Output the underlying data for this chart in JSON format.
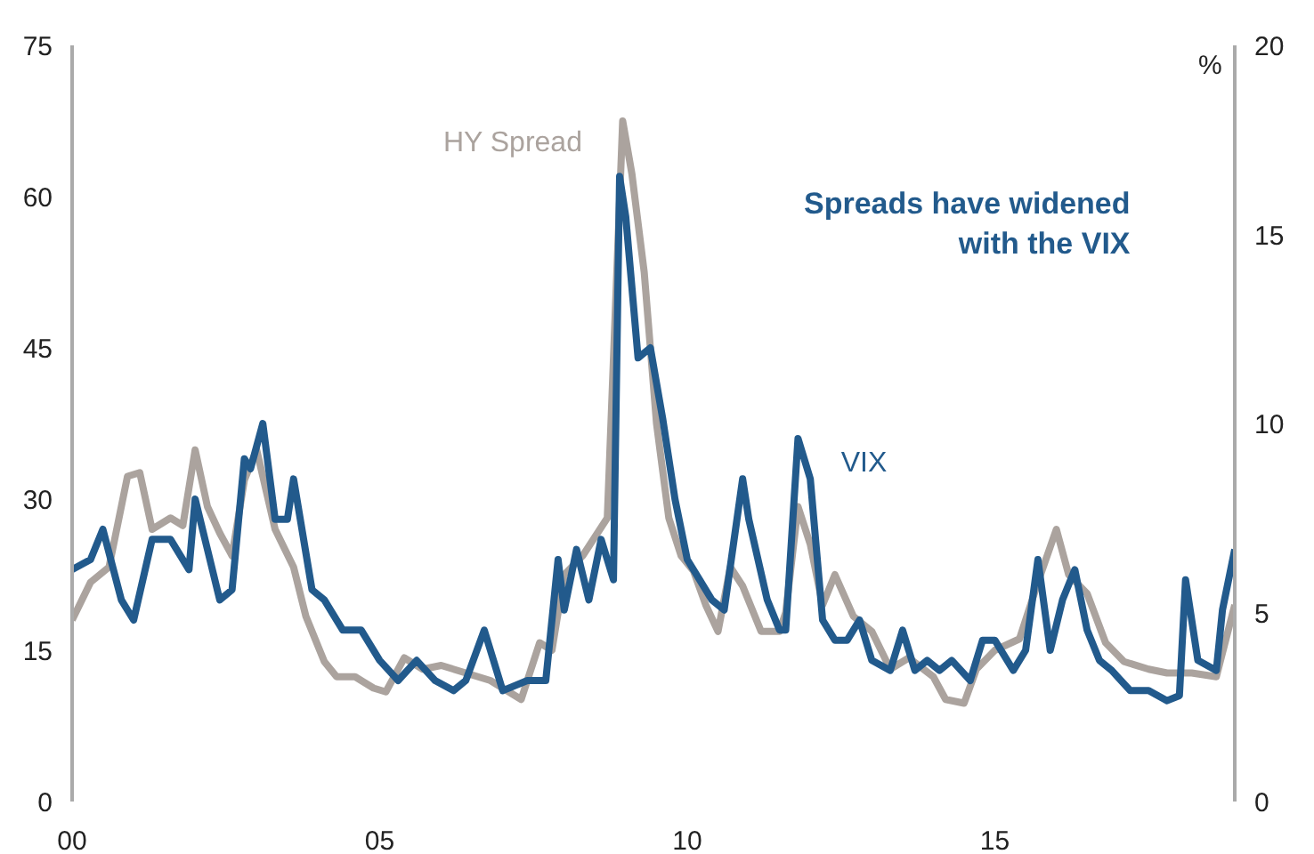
{
  "chart_data": {
    "type": "line",
    "annotations": [
      "Spreads have widened\nwith the VIX"
    ],
    "y2label": "%",
    "xlim": [
      2000,
      2018.9
    ],
    "xticks": [
      {
        "value": 2000,
        "label": "00"
      },
      {
        "value": 2005,
        "label": "05"
      },
      {
        "value": 2010,
        "label": "10"
      },
      {
        "value": 2015,
        "label": "15"
      }
    ],
    "ylim": [
      0,
      75
    ],
    "yticks": [
      0,
      15,
      30,
      45,
      60,
      75
    ],
    "y2lim": [
      0,
      20
    ],
    "y2ticks": [
      0,
      5,
      10,
      15,
      20
    ],
    "grid": false,
    "marker": "none",
    "line_style": "solid",
    "series": [
      {
        "name": "HY Spread",
        "color": "#aba39e",
        "axis": "y2",
        "x": [
          2000.0,
          2000.3,
          2000.6,
          2000.9,
          2001.1,
          2001.3,
          2001.6,
          2001.8,
          2002.0,
          2002.2,
          2002.4,
          2002.6,
          2002.8,
          2003.0,
          2003.3,
          2003.6,
          2003.8,
          2004.1,
          2004.3,
          2004.6,
          2004.9,
          2005.1,
          2005.4,
          2005.7,
          2006.0,
          2006.4,
          2006.8,
          2007.1,
          2007.3,
          2007.6,
          2007.8,
          2008.0,
          2008.3,
          2008.5,
          2008.7,
          2008.95,
          2009.1,
          2009.3,
          2009.5,
          2009.7,
          2009.9,
          2010.1,
          2010.3,
          2010.5,
          2010.7,
          2010.9,
          2011.2,
          2011.5,
          2011.6,
          2011.8,
          2012.0,
          2012.2,
          2012.4,
          2012.7,
          2013.0,
          2013.3,
          2013.6,
          2014.0,
          2014.2,
          2014.5,
          2014.7,
          2015.0,
          2015.4,
          2015.7,
          2016.0,
          2016.2,
          2016.5,
          2016.8,
          2017.1,
          2017.5,
          2017.8,
          2018.2,
          2018.6,
          2018.9
        ],
        "values": [
          4.8,
          5.8,
          6.2,
          8.6,
          8.7,
          7.2,
          7.5,
          7.3,
          9.3,
          7.8,
          7.1,
          6.5,
          8.5,
          9.3,
          7.2,
          6.2,
          4.9,
          3.7,
          3.3,
          3.3,
          3.0,
          2.9,
          3.8,
          3.5,
          3.6,
          3.4,
          3.2,
          2.9,
          2.7,
          4.2,
          4.0,
          6.0,
          6.5,
          7.0,
          7.5,
          18.0,
          16.6,
          14.0,
          10.0,
          7.5,
          6.5,
          6.1,
          5.2,
          4.5,
          6.2,
          5.7,
          4.5,
          4.5,
          5.0,
          7.8,
          6.8,
          5.2,
          6.0,
          4.9,
          4.5,
          3.5,
          3.8,
          3.3,
          2.7,
          2.6,
          3.5,
          4.0,
          4.3,
          5.8,
          7.2,
          6.0,
          5.5,
          4.2,
          3.7,
          3.5,
          3.4,
          3.4,
          3.3,
          5.2
        ]
      },
      {
        "name": "VIX",
        "color": "#225a8c",
        "x": [
          2000.0,
          2000.3,
          2000.5,
          2000.8,
          2001.0,
          2001.3,
          2001.6,
          2001.9,
          2002.0,
          2002.2,
          2002.4,
          2002.6,
          2002.8,
          2002.9,
          2003.1,
          2003.3,
          2003.5,
          2003.6,
          2003.9,
          2004.1,
          2004.4,
          2004.7,
          2005.0,
          2005.3,
          2005.6,
          2005.9,
          2006.2,
          2006.4,
          2006.7,
          2007.0,
          2007.4,
          2007.7,
          2007.9,
          2008.0,
          2008.2,
          2008.4,
          2008.6,
          2008.8,
          2008.9,
          2009.0,
          2009.2,
          2009.4,
          2009.6,
          2009.8,
          2010.0,
          2010.2,
          2010.4,
          2010.6,
          2010.9,
          2011.0,
          2011.3,
          2011.5,
          2011.6,
          2011.8,
          2012.0,
          2012.2,
          2012.4,
          2012.6,
          2012.8,
          2013.0,
          2013.3,
          2013.5,
          2013.7,
          2013.9,
          2014.1,
          2014.3,
          2014.6,
          2014.8,
          2015.0,
          2015.3,
          2015.5,
          2015.7,
          2015.9,
          2016.1,
          2016.3,
          2016.5,
          2016.7,
          2016.9,
          2017.2,
          2017.5,
          2017.8,
          2018.0,
          2018.1,
          2018.3,
          2018.6,
          2018.7,
          2018.9
        ],
        "values": [
          23,
          24,
          27,
          20,
          18,
          26,
          26,
          23,
          30,
          25,
          20,
          21,
          34,
          33,
          37.5,
          28,
          28,
          32,
          21,
          20,
          17,
          17,
          14,
          12,
          14,
          12,
          11,
          12,
          17,
          11,
          12,
          12,
          24,
          19,
          25,
          20,
          26,
          22,
          62,
          58,
          44,
          45,
          38,
          30,
          24,
          22,
          20,
          19,
          32,
          28,
          20,
          17,
          17,
          36,
          32,
          18,
          16,
          16,
          18,
          14,
          13,
          17,
          13,
          14,
          13,
          14,
          12,
          16,
          16,
          13,
          15,
          24,
          15,
          20,
          23,
          17,
          14,
          13,
          11,
          11,
          10,
          10.5,
          22,
          14,
          13,
          19,
          25
        ]
      }
    ]
  }
}
